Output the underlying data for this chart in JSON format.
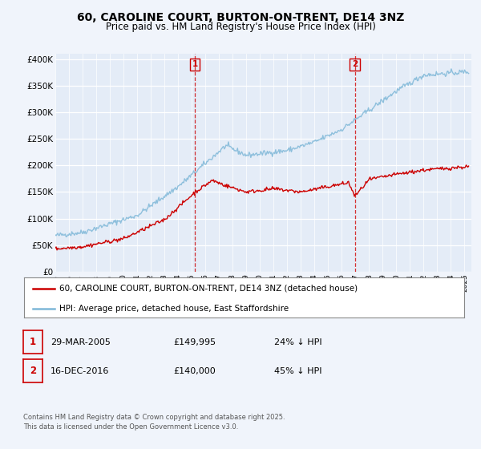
{
  "title": "60, CAROLINE COURT, BURTON-ON-TRENT, DE14 3NZ",
  "subtitle": "Price paid vs. HM Land Registry's House Price Index (HPI)",
  "ylabel_ticks": [
    "£0",
    "£50K",
    "£100K",
    "£150K",
    "£200K",
    "£250K",
    "£300K",
    "£350K",
    "£400K"
  ],
  "ytick_values": [
    0,
    50000,
    100000,
    150000,
    200000,
    250000,
    300000,
    350000,
    400000
  ],
  "ylim": [
    0,
    410000
  ],
  "xlim_start": 1995.0,
  "xlim_end": 2025.5,
  "hpi_color": "#7fb8d8",
  "price_color": "#cc0000",
  "marker1_date": 2005.23,
  "marker1_price": 149995,
  "marker1_label": "1",
  "marker2_date": 2016.96,
  "marker2_price": 140000,
  "marker2_label": "2",
  "legend_label1": "60, CAROLINE COURT, BURTON-ON-TRENT, DE14 3NZ (detached house)",
  "legend_label2": "HPI: Average price, detached house, East Staffordshire",
  "table_row1": [
    "1",
    "29-MAR-2005",
    "£149,995",
    "24% ↓ HPI"
  ],
  "table_row2": [
    "2",
    "16-DEC-2016",
    "£140,000",
    "45% ↓ HPI"
  ],
  "footnote": "Contains HM Land Registry data © Crown copyright and database right 2025.\nThis data is licensed under the Open Government Licence v3.0.",
  "background_color": "#f0f4fb",
  "plot_bg_color": "#e4ecf7"
}
